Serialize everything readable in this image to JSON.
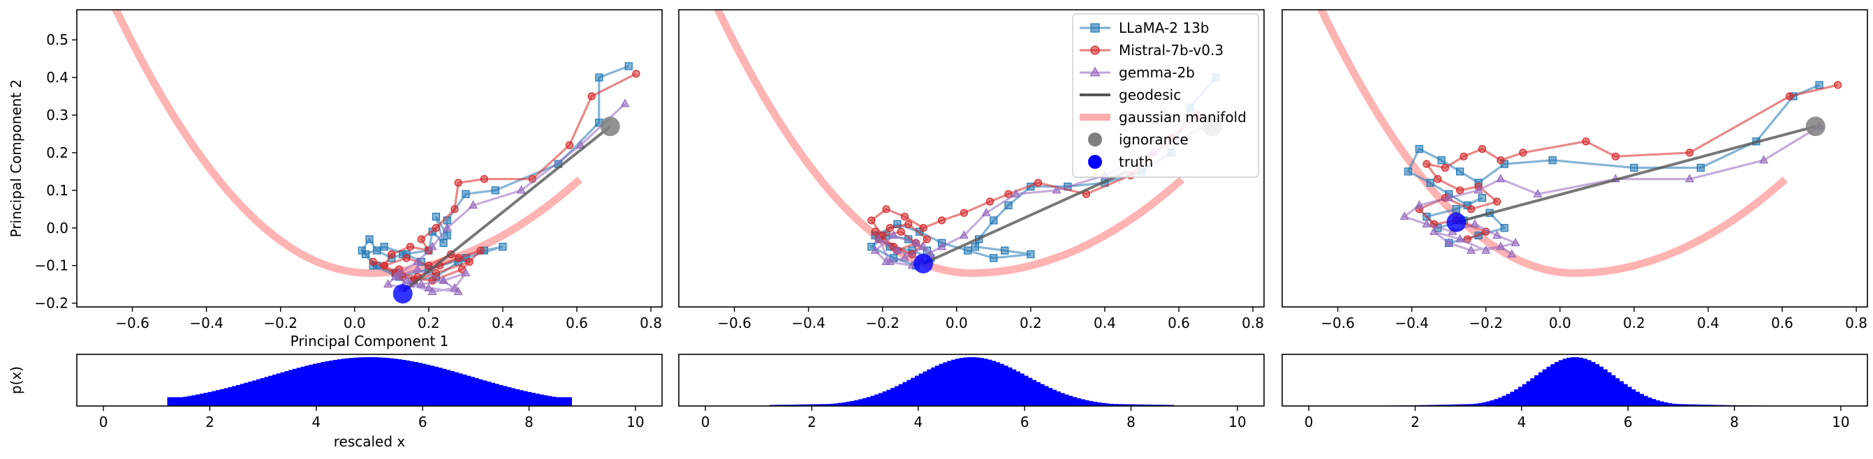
{
  "chart_data": [
    {
      "type": "line",
      "panel": 1,
      "xlabel": "Principal Component 1",
      "ylabel": "Principal Component 2",
      "xlim": [
        -0.75,
        0.83
      ],
      "ylim": [
        -0.21,
        0.58
      ],
      "xticks": [
        -0.6,
        -0.4,
        -0.2,
        0.0,
        0.2,
        0.4,
        0.6,
        0.8
      ],
      "xtick_labels": [
        "−0.6",
        "−0.4",
        "−0.2",
        "0.0",
        "0.2",
        "0.4",
        "0.6",
        "0.8"
      ],
      "yticks": [
        -0.2,
        -0.1,
        0.0,
        0.1,
        0.2,
        0.3,
        0.4,
        0.5
      ],
      "ytick_labels": [
        "−0.2",
        "−0.1",
        "0.0",
        "0.1",
        "0.2",
        "0.3",
        "0.4",
        "0.5"
      ],
      "series": [
        {
          "name": "LLaMA-2 13b",
          "color": "#1f77b4",
          "marker": "square",
          "x": [
            0.74,
            0.66,
            0.66,
            0.55,
            0.38,
            0.3,
            0.25,
            0.25,
            0.22,
            0.24,
            0.21,
            0.2,
            0.13,
            0.1,
            0.06,
            0.04,
            0.02,
            0.06,
            0.11,
            0.16,
            0.22,
            0.28,
            0.35,
            0.4,
            0.3,
            0.2,
            0.12,
            0.05,
            0.03,
            0.08,
            0.14,
            0.18
          ],
          "y": [
            0.43,
            0.4,
            0.28,
            0.17,
            0.1,
            0.09,
            0.02,
            -0.02,
            0.03,
            -0.04,
            -0.01,
            -0.06,
            -0.07,
            -0.08,
            -0.06,
            -0.03,
            -0.06,
            -0.1,
            -0.12,
            -0.14,
            -0.13,
            -0.09,
            -0.06,
            -0.05,
            -0.08,
            -0.11,
            -0.13,
            -0.1,
            -0.07,
            -0.05,
            -0.07,
            -0.09
          ]
        },
        {
          "name": "Mistral-7b-v0.3",
          "color": "#d62728",
          "marker": "circle",
          "x": [
            0.76,
            0.64,
            0.58,
            0.48,
            0.35,
            0.28,
            0.27,
            0.22,
            0.18,
            0.2,
            0.15,
            0.1,
            0.08,
            0.05,
            0.11,
            0.17,
            0.23,
            0.28,
            0.34,
            0.29,
            0.21,
            0.13,
            0.08,
            0.14,
            0.2,
            0.26,
            0.31,
            0.22,
            0.16,
            0.12
          ],
          "y": [
            0.41,
            0.35,
            0.22,
            0.13,
            0.13,
            0.12,
            0.05,
            0.0,
            -0.03,
            -0.06,
            -0.05,
            -0.07,
            -0.1,
            -0.09,
            -0.12,
            -0.13,
            -0.1,
            -0.08,
            -0.06,
            -0.11,
            -0.14,
            -0.13,
            -0.1,
            -0.08,
            -0.1,
            -0.07,
            -0.09,
            -0.12,
            -0.14,
            -0.11
          ]
        },
        {
          "name": "gemma-2b",
          "color": "#9467bd",
          "marker": "triangle",
          "x": [
            0.73,
            0.61,
            0.45,
            0.32,
            0.25,
            0.21,
            0.17,
            0.12,
            0.09,
            0.13,
            0.18,
            0.24,
            0.3,
            0.27,
            0.21,
            0.15,
            0.11,
            0.17,
            0.24,
            0.28,
            0.2,
            0.14
          ],
          "y": [
            0.33,
            0.22,
            0.1,
            0.06,
            0.0,
            -0.05,
            -0.09,
            -0.12,
            -0.15,
            -0.16,
            -0.15,
            -0.14,
            -0.12,
            -0.16,
            -0.17,
            -0.15,
            -0.13,
            -0.11,
            -0.14,
            -0.17,
            -0.16,
            -0.14
          ]
        }
      ],
      "geodesic": {
        "x": [
          0.69,
          0.13
        ],
        "y": [
          0.27,
          -0.17
        ]
      },
      "ignorance": {
        "x": 0.69,
        "y": 0.27
      },
      "truth": {
        "x": 0.13,
        "y": -0.175
      },
      "histogram": {
        "x_range": [
          1.2,
          8.8
        ],
        "bins": 100,
        "spread": 1.9,
        "xlabel": "rescaled x",
        "ylabel": "p(x)",
        "xticks": [
          0,
          2,
          4,
          6,
          8,
          10
        ],
        "xtick_labels": [
          "0",
          "2",
          "4",
          "6",
          "8",
          "10"
        ]
      }
    },
    {
      "type": "line",
      "panel": 2,
      "xlim": [
        -0.75,
        0.83
      ],
      "ylim": [
        -0.21,
        0.58
      ],
      "xticks": [
        -0.6,
        -0.4,
        -0.2,
        0.0,
        0.2,
        0.4,
        0.6,
        0.8
      ],
      "xtick_labels": [
        "−0.6",
        "−0.4",
        "−0.2",
        "0.0",
        "0.2",
        "0.4",
        "0.6",
        "0.8"
      ],
      "series": [
        {
          "name": "LLaMA-2 13b",
          "color": "#1f77b4",
          "marker": "square",
          "x": [
            0.7,
            0.63,
            0.58,
            0.5,
            0.4,
            0.3,
            0.2,
            0.14,
            0.1,
            0.06,
            0.05,
            0.13,
            0.2,
            0.1,
            0.03,
            -0.04,
            -0.1,
            -0.16,
            -0.22,
            -0.18,
            -0.12,
            -0.07,
            -0.11,
            -0.17,
            -0.23,
            -0.19,
            -0.13,
            -0.08
          ],
          "y": [
            0.4,
            0.32,
            0.2,
            0.15,
            0.12,
            0.11,
            0.11,
            0.06,
            0.02,
            -0.03,
            -0.05,
            -0.06,
            -0.07,
            -0.08,
            -0.06,
            -0.04,
            -0.01,
            0.01,
            -0.02,
            -0.05,
            -0.06,
            -0.08,
            -0.1,
            -0.08,
            -0.05,
            -0.02,
            -0.03,
            -0.06
          ]
        },
        {
          "name": "Mistral-7b-v0.3",
          "color": "#d62728",
          "marker": "circle",
          "x": [
            0.65,
            0.58,
            0.47,
            0.35,
            0.22,
            0.14,
            0.09,
            0.02,
            -0.04,
            -0.09,
            -0.14,
            -0.19,
            -0.23,
            -0.2,
            -0.15,
            -0.11,
            -0.16,
            -0.21,
            -0.18,
            -0.13,
            -0.08,
            -0.12,
            -0.17,
            -0.22
          ],
          "y": [
            0.3,
            0.24,
            0.14,
            0.09,
            0.12,
            0.09,
            0.07,
            0.04,
            0.02,
            0.0,
            0.03,
            0.05,
            0.02,
            -0.02,
            -0.01,
            -0.04,
            -0.06,
            -0.03,
            0.0,
            0.01,
            -0.03,
            -0.07,
            -0.05,
            -0.01
          ]
        },
        {
          "name": "gemma-2b",
          "color": "#9467bd",
          "marker": "triangle",
          "x": [
            0.67,
            0.53,
            0.4,
            0.27,
            0.16,
            0.08,
            0.02,
            -0.04,
            -0.1,
            -0.16,
            -0.21,
            -0.18,
            -0.12,
            -0.07,
            -0.11,
            -0.17,
            -0.22,
            -0.19,
            -0.14,
            -0.09
          ],
          "y": [
            0.27,
            0.2,
            0.14,
            0.1,
            0.09,
            0.04,
            -0.02,
            -0.05,
            -0.08,
            -0.06,
            -0.03,
            -0.09,
            -0.1,
            -0.07,
            -0.04,
            -0.02,
            -0.06,
            -0.09,
            -0.08,
            -0.05
          ]
        }
      ],
      "geodesic": {
        "x": [
          0.46,
          -0.09
        ],
        "y": [
          0.15,
          -0.095
        ]
      },
      "ignorance": {
        "x": 0.69,
        "y": 0.27
      },
      "truth": {
        "x": -0.09,
        "y": -0.095
      },
      "histogram": {
        "x_range": [
          1.2,
          8.8
        ],
        "bins": 100,
        "spread": 1.05,
        "xticks": [
          0,
          2,
          4,
          6,
          8,
          10
        ],
        "xtick_labels": [
          "0",
          "2",
          "4",
          "6",
          "8",
          "10"
        ]
      }
    },
    {
      "type": "line",
      "panel": 3,
      "xlim": [
        -0.75,
        0.83
      ],
      "ylim": [
        -0.21,
        0.58
      ],
      "xticks": [
        -0.6,
        -0.4,
        -0.2,
        0.0,
        0.2,
        0.4,
        0.6,
        0.8
      ],
      "xtick_labels": [
        "−0.6",
        "−0.4",
        "−0.2",
        "0.0",
        "0.2",
        "0.4",
        "0.6",
        "0.8"
      ],
      "series": [
        {
          "name": "LLaMA-2 13b",
          "color": "#1f77b4",
          "marker": "square",
          "x": [
            0.7,
            0.63,
            0.53,
            0.38,
            0.2,
            -0.02,
            -0.15,
            -0.22,
            -0.27,
            -0.32,
            -0.38,
            -0.41,
            -0.35,
            -0.3,
            -0.25,
            -0.21,
            -0.28,
            -0.36,
            -0.33,
            -0.26,
            -0.19,
            -0.15,
            -0.22,
            -0.3
          ],
          "y": [
            0.38,
            0.35,
            0.23,
            0.16,
            0.16,
            0.18,
            0.17,
            0.12,
            0.15,
            0.18,
            0.21,
            0.15,
            0.12,
            0.09,
            0.06,
            0.08,
            0.05,
            0.03,
            0.0,
            0.02,
            0.04,
            0.0,
            -0.02,
            -0.04
          ]
        },
        {
          "name": "Mistral-7b-v0.3",
          "color": "#d62728",
          "marker": "circle",
          "x": [
            0.75,
            0.62,
            0.35,
            0.15,
            0.07,
            -0.1,
            -0.16,
            -0.21,
            -0.26,
            -0.31,
            -0.36,
            -0.33,
            -0.27,
            -0.22,
            -0.17,
            -0.24,
            -0.31,
            -0.38,
            -0.34,
            -0.28,
            -0.2,
            -0.25
          ],
          "y": [
            0.38,
            0.35,
            0.2,
            0.19,
            0.23,
            0.2,
            0.18,
            0.21,
            0.19,
            0.16,
            0.17,
            0.13,
            0.1,
            0.11,
            0.07,
            0.05,
            0.08,
            0.05,
            0.01,
            0.02,
            -0.01,
            -0.03
          ]
        },
        {
          "name": "gemma-2b",
          "color": "#9467bd",
          "marker": "triangle",
          "x": [
            0.7,
            0.55,
            0.35,
            0.15,
            -0.06,
            -0.16,
            -0.22,
            -0.3,
            -0.38,
            -0.42,
            -0.36,
            -0.29,
            -0.23,
            -0.17,
            -0.12,
            -0.2,
            -0.27,
            -0.34,
            -0.3,
            -0.24,
            -0.16,
            -0.13
          ],
          "y": [
            0.27,
            0.18,
            0.13,
            0.13,
            0.09,
            0.13,
            0.1,
            0.08,
            0.06,
            0.03,
            0.01,
            -0.01,
            0.01,
            -0.02,
            -0.04,
            -0.06,
            -0.03,
            -0.01,
            -0.04,
            -0.06,
            -0.05,
            -0.07
          ]
        }
      ],
      "geodesic": {
        "x": [
          0.69,
          -0.28
        ],
        "y": [
          0.27,
          0.015
        ]
      },
      "ignorance": {
        "x": 0.69,
        "y": 0.27
      },
      "truth": {
        "x": -0.28,
        "y": 0.015
      },
      "histogram": {
        "x_range": [
          1.2,
          8.8
        ],
        "bins": 100,
        "spread": 0.75,
        "xticks": [
          0,
          2,
          4,
          6,
          8,
          10
        ],
        "xtick_labels": [
          "0",
          "2",
          "4",
          "6",
          "8",
          "10"
        ]
      }
    }
  ],
  "manifold_color": "#ff9999",
  "geodesic_color": "#555555",
  "ignorance_color": "#7f7f7f",
  "truth_color": "#0000ff",
  "hist_color": "#0000ff",
  "legend": {
    "panel": 2,
    "location": "upper right",
    "entries": [
      {
        "label": "LLaMA-2 13b",
        "kind": "square",
        "color": "#1f77b4"
      },
      {
        "label": "Mistral-7b-v0.3",
        "kind": "circle",
        "color": "#d62728"
      },
      {
        "label": "gemma-2b",
        "kind": "triangle",
        "color": "#9467bd"
      },
      {
        "label": "geodesic",
        "kind": "line",
        "color": "#555555"
      },
      {
        "label": "gaussian manifold",
        "kind": "thickline",
        "color": "#ff9999"
      },
      {
        "label": "ignorance",
        "kind": "dot",
        "color": "#7f7f7f"
      },
      {
        "label": "truth",
        "kind": "dot",
        "color": "#0000ff"
      }
    ]
  }
}
